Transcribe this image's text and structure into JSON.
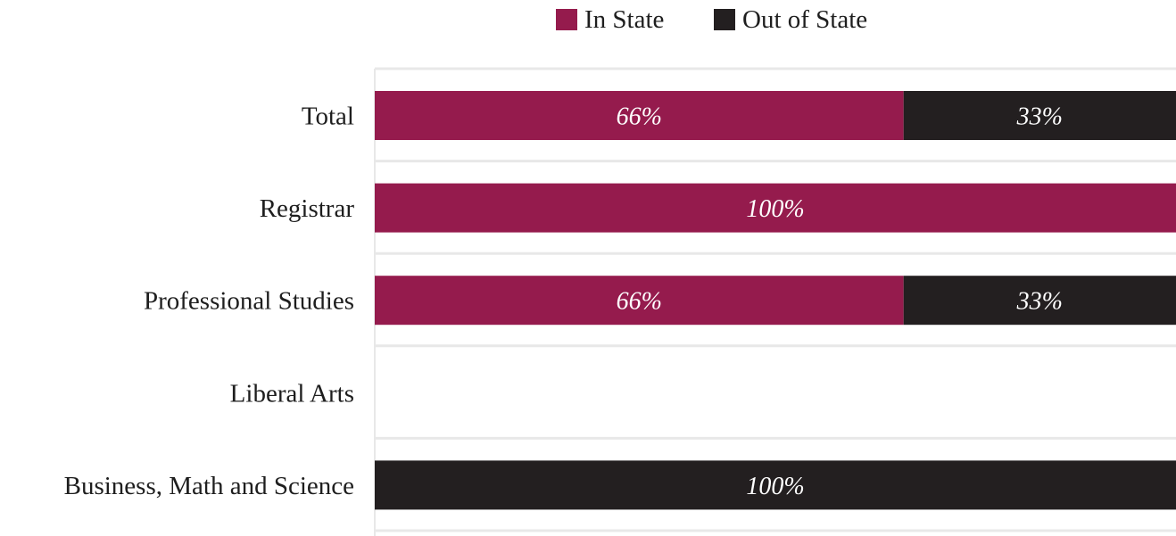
{
  "colors": {
    "in_state": "#951b4d",
    "out_of_state": "#231f20",
    "grid": "#e8e8e8"
  },
  "chart_data": {
    "type": "bar",
    "orientation": "horizontal",
    "stacked": "100%",
    "title": "",
    "xlabel": "",
    "ylabel": "",
    "xlim": [
      0,
      100
    ],
    "legend": {
      "placement": "top-center"
    },
    "categories": [
      "Total",
      "Registrar",
      "Professional Studies",
      "Liberal Arts",
      "Business, Math and Science"
    ],
    "series": [
      {
        "name": "In State",
        "color": "#951b4d",
        "values": [
          66,
          100,
          66,
          0,
          0
        ],
        "labels": [
          "66%",
          "100%",
          "66%",
          "",
          ""
        ]
      },
      {
        "name": "Out of State",
        "color": "#231f20",
        "values": [
          33,
          0,
          33,
          0,
          100
        ],
        "labels": [
          "33%",
          "",
          "33%",
          "",
          "100%"
        ]
      }
    ]
  }
}
